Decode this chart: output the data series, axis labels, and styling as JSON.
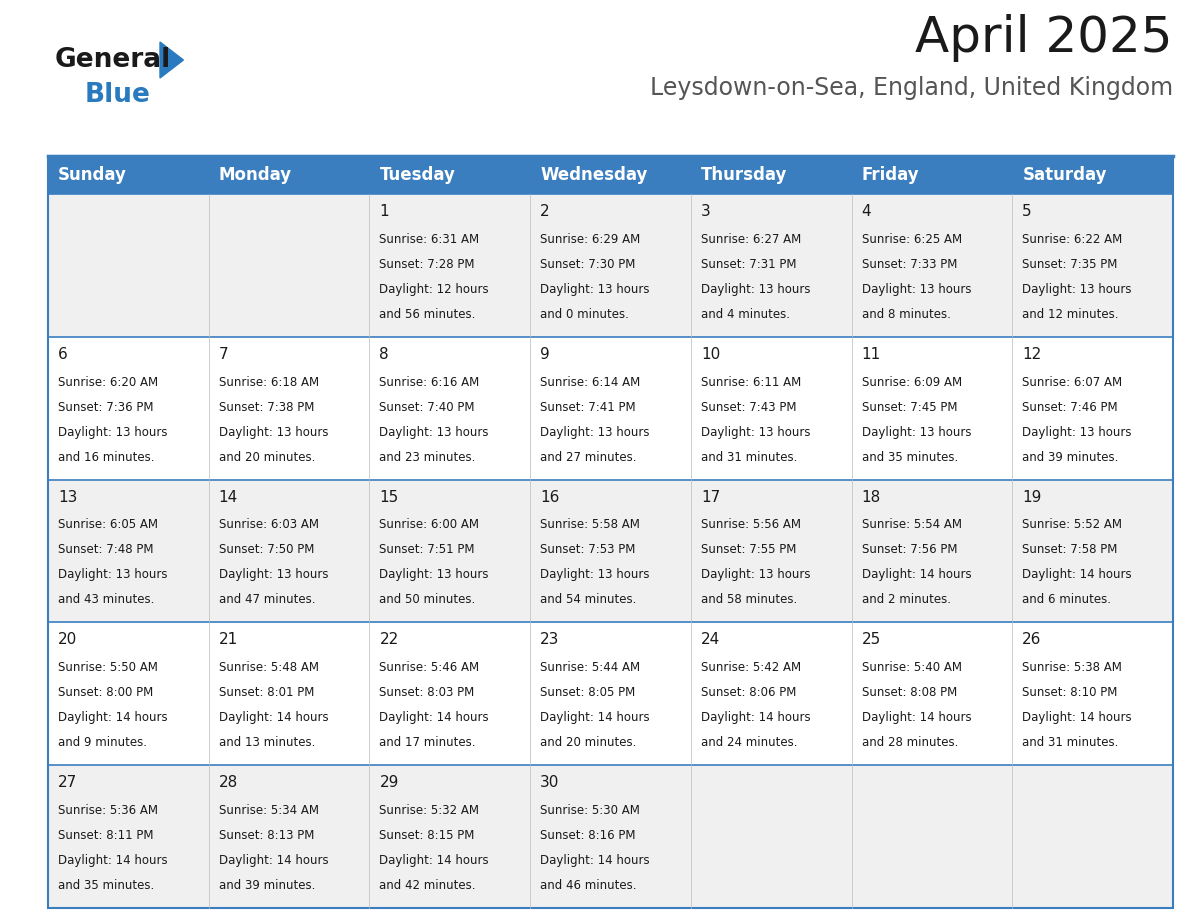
{
  "title": "April 2025",
  "subtitle": "Leysdown-on-Sea, England, United Kingdom",
  "header_bg_color": "#3a7ebf",
  "header_text_color": "#ffffff",
  "row_bg_even": "#f0f0f0",
  "row_bg_odd": "#ffffff",
  "day_names": [
    "Sunday",
    "Monday",
    "Tuesday",
    "Wednesday",
    "Thursday",
    "Friday",
    "Saturday"
  ],
  "weeks": [
    [
      {
        "day": null,
        "sunrise": null,
        "sunset": null,
        "daylight_line1": null,
        "daylight_line2": null
      },
      {
        "day": null,
        "sunrise": null,
        "sunset": null,
        "daylight_line1": null,
        "daylight_line2": null
      },
      {
        "day": 1,
        "sunrise": "6:31 AM",
        "sunset": "7:28 PM",
        "daylight_line1": "Daylight: 12 hours",
        "daylight_line2": "and 56 minutes."
      },
      {
        "day": 2,
        "sunrise": "6:29 AM",
        "sunset": "7:30 PM",
        "daylight_line1": "Daylight: 13 hours",
        "daylight_line2": "and 0 minutes."
      },
      {
        "day": 3,
        "sunrise": "6:27 AM",
        "sunset": "7:31 PM",
        "daylight_line1": "Daylight: 13 hours",
        "daylight_line2": "and 4 minutes."
      },
      {
        "day": 4,
        "sunrise": "6:25 AM",
        "sunset": "7:33 PM",
        "daylight_line1": "Daylight: 13 hours",
        "daylight_line2": "and 8 minutes."
      },
      {
        "day": 5,
        "sunrise": "6:22 AM",
        "sunset": "7:35 PM",
        "daylight_line1": "Daylight: 13 hours",
        "daylight_line2": "and 12 minutes."
      }
    ],
    [
      {
        "day": 6,
        "sunrise": "6:20 AM",
        "sunset": "7:36 PM",
        "daylight_line1": "Daylight: 13 hours",
        "daylight_line2": "and 16 minutes."
      },
      {
        "day": 7,
        "sunrise": "6:18 AM",
        "sunset": "7:38 PM",
        "daylight_line1": "Daylight: 13 hours",
        "daylight_line2": "and 20 minutes."
      },
      {
        "day": 8,
        "sunrise": "6:16 AM",
        "sunset": "7:40 PM",
        "daylight_line1": "Daylight: 13 hours",
        "daylight_line2": "and 23 minutes."
      },
      {
        "day": 9,
        "sunrise": "6:14 AM",
        "sunset": "7:41 PM",
        "daylight_line1": "Daylight: 13 hours",
        "daylight_line2": "and 27 minutes."
      },
      {
        "day": 10,
        "sunrise": "6:11 AM",
        "sunset": "7:43 PM",
        "daylight_line1": "Daylight: 13 hours",
        "daylight_line2": "and 31 minutes."
      },
      {
        "day": 11,
        "sunrise": "6:09 AM",
        "sunset": "7:45 PM",
        "daylight_line1": "Daylight: 13 hours",
        "daylight_line2": "and 35 minutes."
      },
      {
        "day": 12,
        "sunrise": "6:07 AM",
        "sunset": "7:46 PM",
        "daylight_line1": "Daylight: 13 hours",
        "daylight_line2": "and 39 minutes."
      }
    ],
    [
      {
        "day": 13,
        "sunrise": "6:05 AM",
        "sunset": "7:48 PM",
        "daylight_line1": "Daylight: 13 hours",
        "daylight_line2": "and 43 minutes."
      },
      {
        "day": 14,
        "sunrise": "6:03 AM",
        "sunset": "7:50 PM",
        "daylight_line1": "Daylight: 13 hours",
        "daylight_line2": "and 47 minutes."
      },
      {
        "day": 15,
        "sunrise": "6:00 AM",
        "sunset": "7:51 PM",
        "daylight_line1": "Daylight: 13 hours",
        "daylight_line2": "and 50 minutes."
      },
      {
        "day": 16,
        "sunrise": "5:58 AM",
        "sunset": "7:53 PM",
        "daylight_line1": "Daylight: 13 hours",
        "daylight_line2": "and 54 minutes."
      },
      {
        "day": 17,
        "sunrise": "5:56 AM",
        "sunset": "7:55 PM",
        "daylight_line1": "Daylight: 13 hours",
        "daylight_line2": "and 58 minutes."
      },
      {
        "day": 18,
        "sunrise": "5:54 AM",
        "sunset": "7:56 PM",
        "daylight_line1": "Daylight: 14 hours",
        "daylight_line2": "and 2 minutes."
      },
      {
        "day": 19,
        "sunrise": "5:52 AM",
        "sunset": "7:58 PM",
        "daylight_line1": "Daylight: 14 hours",
        "daylight_line2": "and 6 minutes."
      }
    ],
    [
      {
        "day": 20,
        "sunrise": "5:50 AM",
        "sunset": "8:00 PM",
        "daylight_line1": "Daylight: 14 hours",
        "daylight_line2": "and 9 minutes."
      },
      {
        "day": 21,
        "sunrise": "5:48 AM",
        "sunset": "8:01 PM",
        "daylight_line1": "Daylight: 14 hours",
        "daylight_line2": "and 13 minutes."
      },
      {
        "day": 22,
        "sunrise": "5:46 AM",
        "sunset": "8:03 PM",
        "daylight_line1": "Daylight: 14 hours",
        "daylight_line2": "and 17 minutes."
      },
      {
        "day": 23,
        "sunrise": "5:44 AM",
        "sunset": "8:05 PM",
        "daylight_line1": "Daylight: 14 hours",
        "daylight_line2": "and 20 minutes."
      },
      {
        "day": 24,
        "sunrise": "5:42 AM",
        "sunset": "8:06 PM",
        "daylight_line1": "Daylight: 14 hours",
        "daylight_line2": "and 24 minutes."
      },
      {
        "day": 25,
        "sunrise": "5:40 AM",
        "sunset": "8:08 PM",
        "daylight_line1": "Daylight: 14 hours",
        "daylight_line2": "and 28 minutes."
      },
      {
        "day": 26,
        "sunrise": "5:38 AM",
        "sunset": "8:10 PM",
        "daylight_line1": "Daylight: 14 hours",
        "daylight_line2": "and 31 minutes."
      }
    ],
    [
      {
        "day": 27,
        "sunrise": "5:36 AM",
        "sunset": "8:11 PM",
        "daylight_line1": "Daylight: 14 hours",
        "daylight_line2": "and 35 minutes."
      },
      {
        "day": 28,
        "sunrise": "5:34 AM",
        "sunset": "8:13 PM",
        "daylight_line1": "Daylight: 14 hours",
        "daylight_line2": "and 39 minutes."
      },
      {
        "day": 29,
        "sunrise": "5:32 AM",
        "sunset": "8:15 PM",
        "daylight_line1": "Daylight: 14 hours",
        "daylight_line2": "and 42 minutes."
      },
      {
        "day": 30,
        "sunrise": "5:30 AM",
        "sunset": "8:16 PM",
        "daylight_line1": "Daylight: 14 hours",
        "daylight_line2": "and 46 minutes."
      },
      {
        "day": null,
        "sunrise": null,
        "sunset": null,
        "daylight_line1": null,
        "daylight_line2": null
      },
      {
        "day": null,
        "sunrise": null,
        "sunset": null,
        "daylight_line1": null,
        "daylight_line2": null
      },
      {
        "day": null,
        "sunrise": null,
        "sunset": null,
        "daylight_line1": null,
        "daylight_line2": null
      }
    ]
  ],
  "logo_general_color": "#1a1a1a",
  "logo_blue_color": "#2a7abf",
  "title_fontsize": 36,
  "subtitle_fontsize": 17,
  "header_fontsize": 12,
  "day_num_fontsize": 11,
  "cell_text_fontsize": 8.5,
  "divider_color": "#3a7ebf",
  "border_color": "#3a7ebf"
}
